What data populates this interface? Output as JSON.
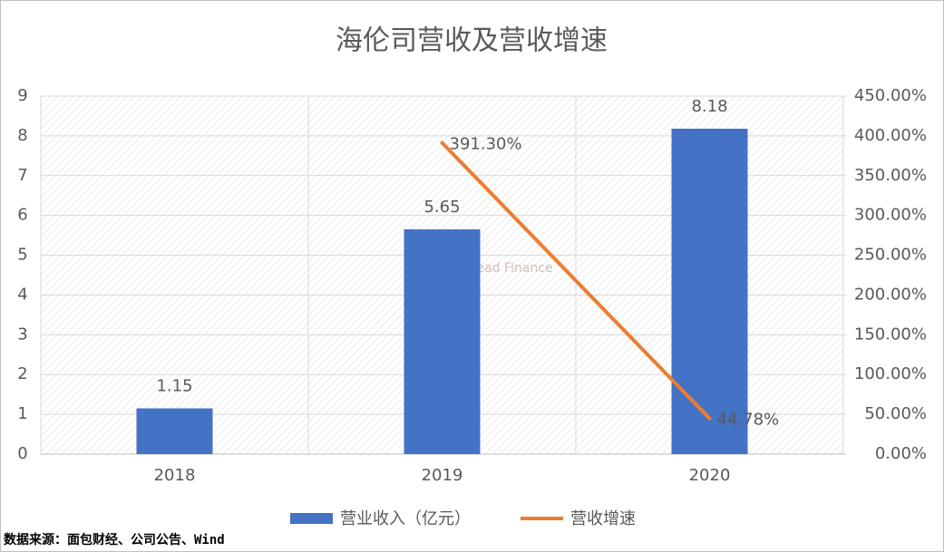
{
  "chart_data": {
    "type": "bar",
    "title": "海伦司营收及营收增速",
    "categories": [
      "2018",
      "2019",
      "2020"
    ],
    "series": [
      {
        "name": "营业收入（亿元）",
        "type": "bar",
        "color": "#4472c4",
        "values": [
          1.15,
          5.65,
          8.18
        ]
      },
      {
        "name": "营收增速",
        "type": "line",
        "axis": "y2",
        "color": "#ed7d31",
        "values": [
          null,
          391.3,
          44.78
        ],
        "value_labels": [
          null,
          "391.30%",
          "44.78%"
        ]
      }
    ],
    "ylim": [
      0,
      9
    ],
    "yticks": [
      0,
      1,
      2,
      3,
      4,
      5,
      6,
      7,
      8,
      9
    ],
    "y2lim": [
      0,
      450
    ],
    "y2ticks": [
      {
        "value": 0,
        "label": "0.00%"
      },
      {
        "value": 50,
        "label": "50.00%"
      },
      {
        "value": 100,
        "label": "100.00%"
      },
      {
        "value": 150,
        "label": "150.00%"
      },
      {
        "value": 200,
        "label": "200.00%"
      },
      {
        "value": 250,
        "label": "250.00%"
      },
      {
        "value": 300,
        "label": "300.00%"
      },
      {
        "value": 350,
        "label": "350.00%"
      },
      {
        "value": 400,
        "label": "400.00%"
      },
      {
        "value": 450,
        "label": "450.00%"
      }
    ],
    "grid": true,
    "legend": "bottom",
    "watermark": "Bread Finance",
    "source": "数据来源：面包财经、公司公告、Wind"
  }
}
